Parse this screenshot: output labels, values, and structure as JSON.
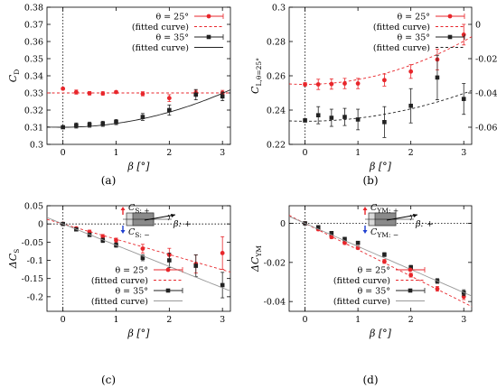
{
  "figure": {
    "panel_labels": [
      "(a)",
      "(b)",
      "(c)",
      "(d)"
    ]
  },
  "colors": {
    "theta25": "#e8262b",
    "theta35": "#222222",
    "inset_up": "#e8262b",
    "inset_down": "#1f3fd0"
  },
  "chart_data": [
    {
      "type": "scatter",
      "panel": "(a)",
      "xlabel": "β [°]",
      "ylabel": "C_D",
      "xlim": [
        -0.3,
        3.15
      ],
      "ylim": [
        0.3,
        0.38
      ],
      "xticks": [
        "0",
        "1",
        "2",
        "3"
      ],
      "yticks": [
        "0.3",
        "0.31",
        "0.32",
        "0.33",
        "0.34",
        "0.35",
        "0.36",
        "0.37",
        "0.38"
      ],
      "legend": {
        "placement": "top-right",
        "entries": [
          "θ = 25°",
          "(fitted curve)",
          "θ = 35°",
          "(fitted curve)"
        ]
      },
      "series": [
        {
          "name": "θ = 25°",
          "color": "#e8262b",
          "marker": "circle",
          "x": [
            0,
            0.25,
            0.5,
            0.75,
            1.0,
            1.5,
            2.0,
            2.5,
            3.0
          ],
          "y": [
            0.3325,
            0.3305,
            0.3298,
            0.3297,
            0.3305,
            0.3295,
            0.327,
            0.33,
            0.33
          ],
          "err": [
            0.0005,
            0.0012,
            0.001,
            0.001,
            0.0008,
            0.0012,
            0.002,
            0.0015,
            0.0015
          ]
        },
        {
          "name": "(fitted curve)",
          "color": "#e8262b",
          "style": "dashed",
          "fit": [
            0.33,
            0,
            0
          ]
        },
        {
          "name": "θ = 35°",
          "color": "#222222",
          "marker": "square",
          "x": [
            0,
            0.25,
            0.5,
            0.75,
            1.0,
            1.5,
            2.0,
            2.5,
            3.0
          ],
          "y": [
            0.31,
            0.311,
            0.3115,
            0.312,
            0.313,
            0.316,
            0.32,
            0.329,
            0.328
          ],
          "err": [
            0.0005,
            0.0015,
            0.0015,
            0.0015,
            0.0015,
            0.002,
            0.003,
            0.003,
            0.0025
          ]
        },
        {
          "name": "(fitted curve)",
          "color": "#222222",
          "style": "solid",
          "fit": [
            0.31,
            0,
            0.0022
          ]
        }
      ],
      "reference_line": {
        "x": 0,
        "style": "dotted"
      }
    },
    {
      "type": "scatter",
      "panel": "(b)",
      "xlabel": "β [°]",
      "ylabel": "C_L,θ=25°",
      "ylabel_right": "C_L,θ=35°",
      "xlim": [
        -0.3,
        3.15
      ],
      "ylim": [
        0.22,
        0.3
      ],
      "ylim_right": [
        -0.07,
        0.01
      ],
      "xticks": [
        "0",
        "1",
        "2",
        "3"
      ],
      "yticks": [
        "0.22",
        "0.24",
        "0.26",
        "0.28",
        "0.3"
      ],
      "yticks_right": [
        "0",
        "-0.02",
        "-0.04",
        "-0.06"
      ],
      "legend": {
        "placement": "top-right",
        "entries": [
          "θ = 25°",
          "(fitted curve)",
          "θ = 35°",
          "(fitted curve)"
        ]
      },
      "series": [
        {
          "name": "θ = 25°",
          "color": "#e8262b",
          "marker": "circle",
          "axis": "left",
          "x": [
            0,
            0.25,
            0.5,
            0.75,
            1.0,
            1.5,
            2.0,
            2.5,
            3.0
          ],
          "y": [
            0.255,
            0.255,
            0.2552,
            0.2555,
            0.2555,
            0.2575,
            0.2625,
            0.2695,
            0.284
          ],
          "err": [
            0.001,
            0.003,
            0.003,
            0.003,
            0.003,
            0.0035,
            0.004,
            0.006,
            0.006
          ]
        },
        {
          "name": "(fitted curve)",
          "color": "#e8262b",
          "style": "dashed",
          "axis": "left",
          "fit": [
            0.255,
            0,
            0.0028
          ]
        },
        {
          "name": "θ = 35°",
          "color": "#222222",
          "marker": "square",
          "axis": "right",
          "x": [
            0,
            0.25,
            0.5,
            0.75,
            1.0,
            1.5,
            2.0,
            2.5,
            3.0
          ],
          "y": [
            -0.056,
            -0.053,
            -0.0545,
            -0.054,
            -0.0555,
            -0.057,
            -0.0475,
            -0.031,
            -0.0435
          ],
          "err": [
            0.001,
            0.005,
            0.005,
            0.005,
            0.006,
            0.009,
            0.01,
            0.013,
            0.009
          ]
        },
        {
          "name": "(fitted curve)",
          "color": "#222222",
          "style": "dashed",
          "axis": "right",
          "fit": [
            -0.0565,
            0,
            0.0018
          ]
        }
      ],
      "reference_line": {
        "x": 0,
        "style": "dotted"
      }
    },
    {
      "type": "scatter",
      "panel": "(c)",
      "xlabel": "β [°]",
      "ylabel": "ΔC_S",
      "xlim": [
        -0.3,
        3.15
      ],
      "ylim": [
        -0.24,
        0.05
      ],
      "xticks": [
        "0",
        "1",
        "2",
        "3"
      ],
      "yticks": [
        "0.05",
        "0",
        "-0.05",
        "-0.1",
        "-0.15",
        "-0.2"
      ],
      "legend": {
        "placement": "bottom-left",
        "entries": [
          "θ = 25°",
          "(fitted curve)",
          "θ = 35°",
          "(fitted curve)"
        ]
      },
      "inset": {
        "up_label": "C_S: +",
        "down_label": "C_S: −",
        "beta_label": "β: +"
      },
      "series": [
        {
          "name": "θ = 25°",
          "color": "#e8262b",
          "marker": "circle",
          "x": [
            0,
            0.25,
            0.5,
            0.75,
            1.0,
            1.5,
            2.0,
            2.5,
            3.0
          ],
          "y": [
            0.0,
            -0.012,
            -0.022,
            -0.035,
            -0.045,
            -0.068,
            -0.085,
            -0.11,
            -0.08
          ],
          "err": [
            0.002,
            0.004,
            0.005,
            0.006,
            0.006,
            0.012,
            0.018,
            0.025,
            0.045
          ]
        },
        {
          "name": "(fitted curve)",
          "color": "#e8262b",
          "style": "dashed",
          "fit": [
            0,
            -0.042,
            0
          ]
        },
        {
          "name": "θ = 35°",
          "color": "#222222",
          "marker": "square",
          "x": [
            0,
            0.25,
            0.5,
            0.75,
            1.0,
            1.5,
            2.0,
            2.5,
            3.0
          ],
          "y": [
            0.0,
            -0.015,
            -0.03,
            -0.045,
            -0.058,
            -0.093,
            -0.1,
            -0.115,
            -0.168
          ],
          "err": [
            0.002,
            0.004,
            0.005,
            0.006,
            0.006,
            0.008,
            0.02,
            0.03,
            0.035
          ]
        },
        {
          "name": "(fitted curve)",
          "color": "#999999",
          "style": "solid",
          "fit": [
            0,
            -0.0585,
            0
          ]
        }
      ],
      "reference_line": {
        "x": 0,
        "y": 0,
        "style": "dotted"
      }
    },
    {
      "type": "scatter",
      "panel": "(d)",
      "xlabel": "β [°]",
      "ylabel": "ΔC_YM",
      "xlim": [
        -0.3,
        3.15
      ],
      "ylim": [
        -0.045,
        0.009
      ],
      "xticks": [
        "0",
        "1",
        "2",
        "3"
      ],
      "yticks": [
        "0",
        "-0.02",
        "-0.04"
      ],
      "legend": {
        "placement": "bottom-left",
        "entries": [
          "θ = 25°",
          "(fitted curve)",
          "θ = 35°",
          "(fitted curve)"
        ]
      },
      "inset": {
        "up_label": "C_YM: +",
        "down_label": "C_YM: −",
        "beta_label": "β: +"
      },
      "series": [
        {
          "name": "θ = 25°",
          "color": "#e8262b",
          "marker": "circle",
          "x": [
            0,
            0.25,
            0.5,
            0.75,
            1.0,
            1.5,
            2.0,
            2.5,
            3.0
          ],
          "y": [
            0.0,
            -0.003,
            -0.007,
            -0.01,
            -0.0125,
            -0.0195,
            -0.0265,
            -0.0335,
            -0.0375
          ],
          "err": [
            0.0005,
            0.0008,
            0.0008,
            0.0008,
            0.0008,
            0.001,
            0.001,
            0.0012,
            0.0015
          ]
        },
        {
          "name": "(fitted curve)",
          "color": "#e8262b",
          "style": "dashed",
          "fit": [
            0,
            -0.0135,
            0
          ]
        },
        {
          "name": "θ = 35°",
          "color": "#222222",
          "marker": "square",
          "x": [
            0,
            0.25,
            0.5,
            0.75,
            1.0,
            1.5,
            2.0,
            2.5,
            3.0
          ],
          "y": [
            0.0,
            -0.002,
            -0.005,
            -0.008,
            -0.01,
            -0.016,
            -0.0225,
            -0.0295,
            -0.0355
          ],
          "err": [
            0.0005,
            0.0008,
            0.0008,
            0.0008,
            0.0008,
            0.001,
            0.001,
            0.0012,
            0.0015
          ]
        },
        {
          "name": "(fitted curve)",
          "color": "#999999",
          "style": "solid",
          "fit": [
            0,
            -0.0118,
            0
          ]
        }
      ],
      "reference_line": {
        "x": 0,
        "y": 0,
        "style": "dotted"
      }
    }
  ]
}
